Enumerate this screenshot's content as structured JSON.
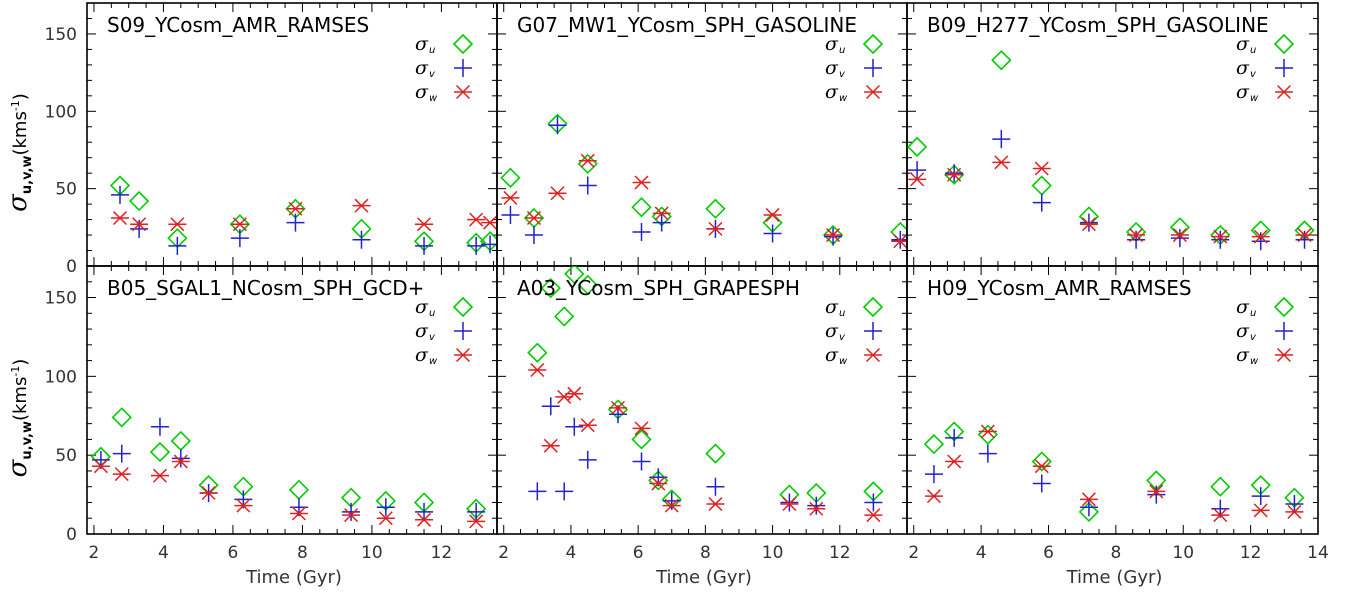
{
  "figure": {
    "ylabel": {
      "symbol": "σ",
      "subscript": "u,v,w",
      "unit": "(kms",
      "unit_sup": "-1",
      "unit_close": ")"
    }
  },
  "legend": [
    {
      "symbol": "σ",
      "sub": "u",
      "marker": "diamond",
      "color": "#00cc00"
    },
    {
      "symbol": "σ",
      "sub": "v",
      "marker": "plus",
      "color": "#2222cc"
    },
    {
      "symbol": "σ",
      "sub": "w",
      "marker": "asterisk",
      "color": "#dd2222"
    }
  ],
  "chart_data": [
    {
      "type": "scatter",
      "title": "S09_YCosm_AMR_RAMSES",
      "xlabel": "",
      "ylabel": "σu,v,w (kms-1)",
      "xlim": [
        1.8,
        13.6
      ],
      "ylim": [
        0,
        170
      ],
      "xticks": [],
      "yticks": [
        "0",
        "50",
        "100",
        "150"
      ],
      "series": [
        {
          "name": "σu",
          "x": [
            2.75,
            3.3,
            4.4,
            6.2,
            7.8,
            9.7,
            11.5,
            13.0,
            13.4
          ],
          "y": [
            52,
            42,
            18,
            27,
            37,
            24,
            16,
            15,
            16
          ]
        },
        {
          "name": "σv",
          "x": [
            2.75,
            3.3,
            4.4,
            6.2,
            7.8,
            9.7,
            11.5,
            13.0,
            13.4
          ],
          "y": [
            46,
            24,
            13,
            18,
            28,
            17,
            13,
            13,
            14
          ]
        },
        {
          "name": "σw",
          "x": [
            2.75,
            3.3,
            4.4,
            6.2,
            7.8,
            9.7,
            11.5,
            13.0,
            13.4
          ],
          "y": [
            31,
            27,
            27,
            27,
            37,
            39,
            27,
            30,
            28
          ]
        }
      ]
    },
    {
      "type": "scatter",
      "title": "G07_MW1_YCosm_SPH_GASOLINE",
      "xlabel": "",
      "ylabel": "",
      "xlim": [
        1.8,
        14.0
      ],
      "ylim": [
        0,
        170
      ],
      "xticks": [],
      "yticks": [],
      "series": [
        {
          "name": "σu",
          "x": [
            2.2,
            2.9,
            3.6,
            4.5,
            6.1,
            6.7,
            8.3,
            10.0,
            11.8,
            13.8
          ],
          "y": [
            57,
            31,
            92,
            66,
            38,
            32,
            37,
            28,
            20,
            22
          ]
        },
        {
          "name": "σv",
          "x": [
            2.2,
            2.9,
            3.6,
            4.5,
            6.1,
            6.7,
            8.3,
            10.0,
            11.8,
            13.8
          ],
          "y": [
            33,
            20,
            91,
            52,
            22,
            28,
            24,
            21,
            19,
            17
          ]
        },
        {
          "name": "σw",
          "x": [
            2.2,
            2.9,
            3.6,
            4.5,
            6.1,
            6.7,
            8.3,
            10.0,
            11.8,
            13.8
          ],
          "y": [
            44,
            31,
            47,
            68,
            54,
            34,
            24,
            33,
            20,
            16
          ]
        }
      ]
    },
    {
      "type": "scatter",
      "title": "B09_H277_YCosm_SPH_GASOLINE",
      "xlabel": "",
      "ylabel": "",
      "xlim": [
        1.8,
        14.0
      ],
      "ylim": [
        0,
        170
      ],
      "xticks": [],
      "yticks": [],
      "series": [
        {
          "name": "σu",
          "x": [
            2.1,
            3.2,
            4.6,
            5.8,
            7.2,
            8.6,
            9.9,
            11.1,
            12.3,
            13.6
          ],
          "y": [
            77,
            59,
            133,
            52,
            32,
            22,
            25,
            20,
            23,
            23
          ]
        },
        {
          "name": "σv",
          "x": [
            2.1,
            3.2,
            4.6,
            5.8,
            7.2,
            8.6,
            9.9,
            11.1,
            12.3,
            13.6
          ],
          "y": [
            62,
            60,
            82,
            41,
            28,
            17,
            18,
            17,
            16,
            17
          ]
        },
        {
          "name": "σw",
          "x": [
            2.1,
            3.2,
            4.6,
            5.8,
            7.2,
            8.6,
            9.9,
            11.1,
            12.3,
            13.6
          ],
          "y": [
            56,
            59,
            67,
            63,
            27,
            20,
            20,
            19,
            19,
            20
          ]
        }
      ]
    },
    {
      "type": "scatter",
      "title": "B05_SGAL1_NCosm_SPH_GCD+",
      "xlabel": "Time (Gyr)",
      "ylabel": "σu,v,w (kms-1)",
      "xlim": [
        1.8,
        13.6
      ],
      "ylim": [
        0,
        170
      ],
      "xticks": [
        "2",
        "4",
        "6",
        "8",
        "10",
        "12"
      ],
      "yticks": [
        "0",
        "50",
        "100",
        "150"
      ],
      "series": [
        {
          "name": "σu",
          "x": [
            2.2,
            2.8,
            3.9,
            4.5,
            5.3,
            6.3,
            7.9,
            9.4,
            10.4,
            11.5,
            13.0
          ],
          "y": [
            49,
            74,
            52,
            59,
            31,
            30,
            28,
            23,
            21,
            20,
            16
          ]
        },
        {
          "name": "σv",
          "x": [
            2.2,
            2.8,
            3.9,
            4.5,
            5.3,
            6.3,
            7.9,
            9.4,
            10.4,
            11.5,
            13.0
          ],
          "y": [
            47,
            51,
            68,
            48,
            26,
            22,
            17,
            14,
            17,
            14,
            14
          ]
        },
        {
          "name": "σw",
          "x": [
            2.2,
            2.8,
            3.9,
            4.5,
            5.3,
            6.3,
            7.9,
            9.4,
            10.4,
            11.5,
            13.0
          ],
          "y": [
            43,
            38,
            37,
            46,
            26,
            18,
            13,
            12,
            10,
            9,
            8
          ]
        }
      ]
    },
    {
      "type": "scatter",
      "title": "A03_YCosm_SPH_GRAPESPH",
      "xlabel": "Time (Gyr)",
      "ylabel": "",
      "xlim": [
        1.8,
        14.0
      ],
      "ylim": [
        0,
        170
      ],
      "xticks": [
        "2",
        "4",
        "6",
        "8",
        "10",
        "12"
      ],
      "yticks": [],
      "series": [
        {
          "name": "σu",
          "x": [
            3.0,
            3.4,
            3.8,
            4.1,
            4.5,
            5.4,
            6.1,
            6.6,
            7.0,
            8.3,
            10.5,
            11.3,
            13.0
          ],
          "y": [
            115,
            156,
            138,
            165,
            158,
            79,
            60,
            34,
            22,
            51,
            25,
            26,
            27
          ]
        },
        {
          "name": "σv",
          "x": [
            3.0,
            3.4,
            3.8,
            4.1,
            4.5,
            5.4,
            6.1,
            6.6,
            7.0,
            8.3,
            10.5,
            11.3,
            13.0
          ],
          "y": [
            27,
            81,
            27,
            68,
            47,
            76,
            46,
            36,
            21,
            30,
            20,
            18,
            20
          ]
        },
        {
          "name": "σw",
          "x": [
            3.0,
            3.4,
            3.8,
            4.1,
            4.5,
            5.4,
            6.1,
            6.6,
            7.0,
            8.3,
            10.5,
            11.3,
            13.0
          ],
          "y": [
            104,
            56,
            87,
            89,
            69,
            80,
            67,
            32,
            18,
            19,
            19,
            16,
            12
          ]
        }
      ]
    },
    {
      "type": "scatter",
      "title": "H09_YCosm_AMR_RAMSES",
      "xlabel": "Time (Gyr)",
      "ylabel": "",
      "xlim": [
        1.8,
        14.0
      ],
      "ylim": [
        0,
        170
      ],
      "xticks": [
        "2",
        "4",
        "6",
        "8",
        "10",
        "12",
        "14"
      ],
      "yticks": [],
      "series": [
        {
          "name": "σu",
          "x": [
            2.6,
            3.2,
            4.2,
            5.8,
            7.2,
            9.2,
            11.1,
            12.3,
            13.3
          ],
          "y": [
            57,
            65,
            63,
            46,
            14,
            34,
            30,
            31,
            23
          ]
        },
        {
          "name": "σv",
          "x": [
            2.6,
            3.2,
            4.2,
            5.8,
            7.2,
            9.2,
            11.1,
            12.3,
            13.3
          ],
          "y": [
            38,
            61,
            51,
            32,
            17,
            25,
            16,
            24,
            19
          ]
        },
        {
          "name": "σw",
          "x": [
            2.6,
            3.2,
            4.2,
            5.8,
            7.2,
            9.2,
            11.1,
            12.3,
            13.3
          ],
          "y": [
            24,
            46,
            65,
            43,
            22,
            27,
            12,
            15,
            14
          ]
        }
      ]
    }
  ]
}
